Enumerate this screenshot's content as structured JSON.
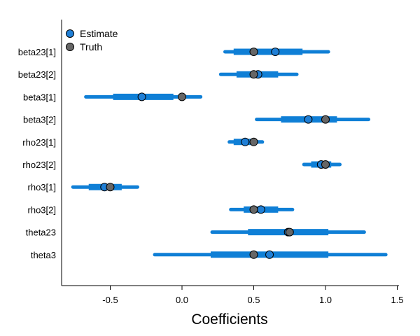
{
  "chart_data": {
    "type": "interval",
    "xlabel": "Coefficients",
    "xlim": [
      -0.85,
      1.5
    ],
    "xticks": [
      -0.5,
      0.0,
      0.5,
      1.0,
      1.5
    ],
    "xtick_labels": [
      "-0.5",
      "0.0",
      "0.5",
      "1.0",
      "1.5"
    ],
    "categories": [
      "beta23[1]",
      "beta23[2]",
      "beta3[1]",
      "beta3[2]",
      "rho23[1]",
      "rho23[2]",
      "rho3[1]",
      "rho3[2]",
      "theta23",
      "theta3"
    ],
    "estimates": [
      0.65,
      0.53,
      -0.28,
      0.88,
      0.44,
      0.97,
      -0.54,
      0.55,
      0.74,
      0.61
    ],
    "truth": [
      0.5,
      0.5,
      0.0,
      1.0,
      0.5,
      1.0,
      -0.5,
      0.5,
      0.75,
      0.5
    ],
    "inner_intervals": [
      [
        0.36,
        0.84
      ],
      [
        0.38,
        0.67
      ],
      [
        -0.48,
        -0.06
      ],
      [
        0.69,
        1.08
      ],
      [
        0.36,
        0.52
      ],
      [
        0.9,
        1.04
      ],
      [
        -0.65,
        -0.42
      ],
      [
        0.43,
        0.67
      ],
      [
        0.46,
        1.02
      ],
      [
        0.2,
        1.02
      ]
    ],
    "outer_intervals": [
      [
        0.3,
        1.02
      ],
      [
        0.27,
        0.8
      ],
      [
        -0.67,
        0.13
      ],
      [
        0.52,
        1.3
      ],
      [
        0.33,
        0.56
      ],
      [
        0.85,
        1.1
      ],
      [
        -0.76,
        -0.31
      ],
      [
        0.34,
        0.77
      ],
      [
        0.21,
        1.27
      ],
      [
        -0.19,
        1.42
      ]
    ],
    "legend": {
      "position": "top-left",
      "entries": [
        {
          "label": "Estimate",
          "color": "#1f7fd6"
        },
        {
          "label": "Truth",
          "color": "#666666"
        }
      ]
    },
    "grid": false,
    "colors": {
      "interval": "#0f7fd6",
      "estimate": "#1f7fd6",
      "truth": "#666666"
    }
  }
}
